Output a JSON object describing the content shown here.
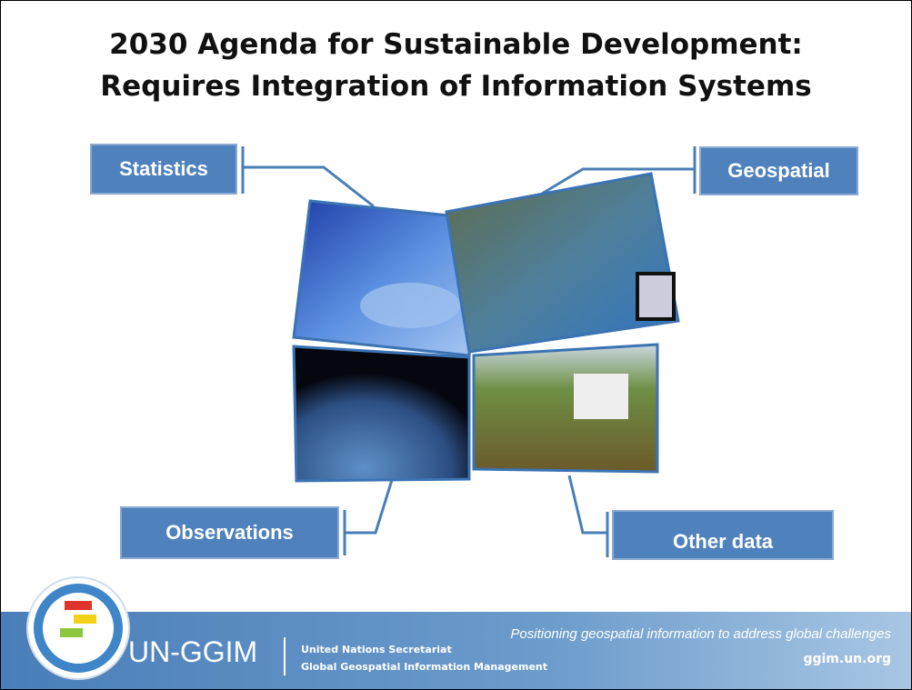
{
  "title": {
    "line1": "2030 Agenda for Sustainable Development:",
    "line2": "Requires Integration of Information Systems"
  },
  "labels": [
    "Statistics",
    "Geospatial",
    "Observations",
    "Other data"
  ],
  "footer": {
    "brand": "UN-GGIM",
    "org_line1": "United Nations Secretariat",
    "org_line2": "Global Geospatial Information Management",
    "tagline": "Positioning geospatial information to address global challenges",
    "url": "ggim.un.org"
  }
}
